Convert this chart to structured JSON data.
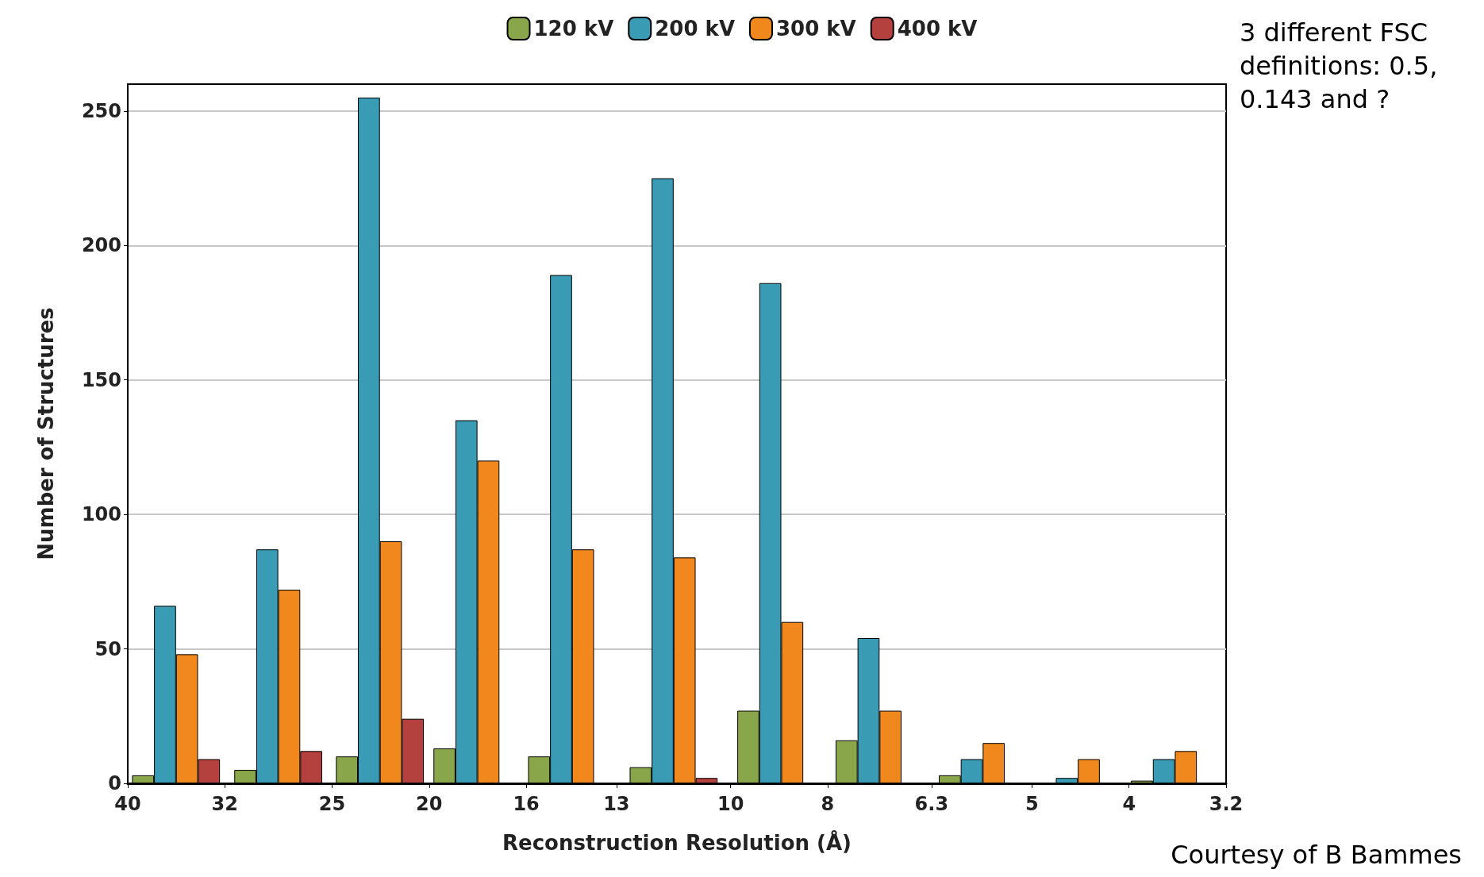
{
  "chart_data": {
    "type": "bar",
    "xlabel": "Reconstruction Resolution (Å)",
    "ylabel": "Number of Structures",
    "x": [
      35.8,
      28.3,
      22.4,
      17.9,
      14.4,
      11.4,
      8.9,
      7.1,
      5.6,
      4.5,
      3.6
    ],
    "xlim": [
      40,
      3.2
    ],
    "log": "x",
    "xticks": [
      40,
      32,
      25,
      20,
      16,
      13,
      10,
      8,
      6.3,
      5,
      4,
      3.2
    ],
    "series": [
      {
        "name": "120 kV",
        "color": "#8aa64a",
        "values": [
          3,
          5,
          10,
          13,
          10,
          6,
          27,
          16,
          3,
          null,
          1
        ]
      },
      {
        "name": "200 kV",
        "color": "#3a9bb5",
        "values": [
          66,
          87,
          255,
          135,
          189,
          225,
          186,
          54,
          9,
          2,
          9
        ]
      },
      {
        "name": "300 kV",
        "color": "#f0881e",
        "values": [
          48,
          72,
          90,
          120,
          87,
          84,
          60,
          27,
          15,
          9,
          12
        ]
      },
      {
        "name": "400 kV",
        "color": "#b5413f",
        "values": [
          9,
          12,
          24,
          null,
          null,
          2,
          null,
          null,
          null,
          null,
          null
        ]
      }
    ],
    "ylim": [
      0,
      260
    ],
    "yticks": [
      0,
      50,
      100,
      150,
      200,
      250
    ],
    "grid": "y",
    "legend": "top",
    "annotations": [
      "3 different FSC definitions: 0.5, 0.143 and ?",
      "Courtesy of B Bammes"
    ]
  }
}
